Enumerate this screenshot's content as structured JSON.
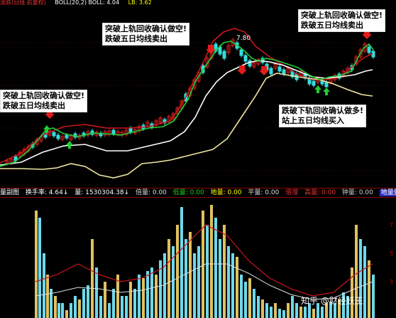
{
  "topbar": {
    "t1": "涨跌(日线 前复权)",
    "t2": "BOLL(20,2)  BOLL: 4.04",
    "t3": "LB: 3.62"
  },
  "price_labels": {
    "peak": "7.80"
  },
  "annotations": {
    "sell_mid": {
      "line1": "突破上轨回收确认做空!",
      "line2": "跌破五日均线卖出"
    },
    "sell_left": {
      "line1": "突破上轨回收确认做空!",
      "line2": "跌破五日均线卖出"
    },
    "sell_right": {
      "line1": "突破上轨回收确认做空!",
      "line2": "跌破五日均线卖出"
    },
    "buy": {
      "line1": "跌破下轨回收确认做多!",
      "line2": "站上五日均线买入"
    }
  },
  "status": {
    "panel": "量副图",
    "turnover": "换手率: 4.64↓",
    "volume": "量: 1530304.38↓",
    "beiliang": "倍量: 0.00",
    "diliang": "低量: 0.00",
    "dijiliang": "地量: 0.00",
    "pingliang": "平量: 0.00",
    "beiliang2": "倍增",
    "gaoliang": "高量: 0.00",
    "yiliang": "钟量: 0.00",
    "jiliang": "地量量"
  },
  "vol_axis": {
    "t1": "7",
    "t2": "5",
    "t3": "3"
  },
  "watermark": "知乎 @财经妖王",
  "colors": {
    "upper_band": "#c8161d",
    "mid_band": "#ffffff",
    "lower_band": "#f0e6a0",
    "ma5": "#22cc33",
    "candle_up": "#e02020",
    "candle_down": "#33dddd",
    "volume_up": "#e0c060",
    "volume_down": "#6fd8ea"
  }
}
